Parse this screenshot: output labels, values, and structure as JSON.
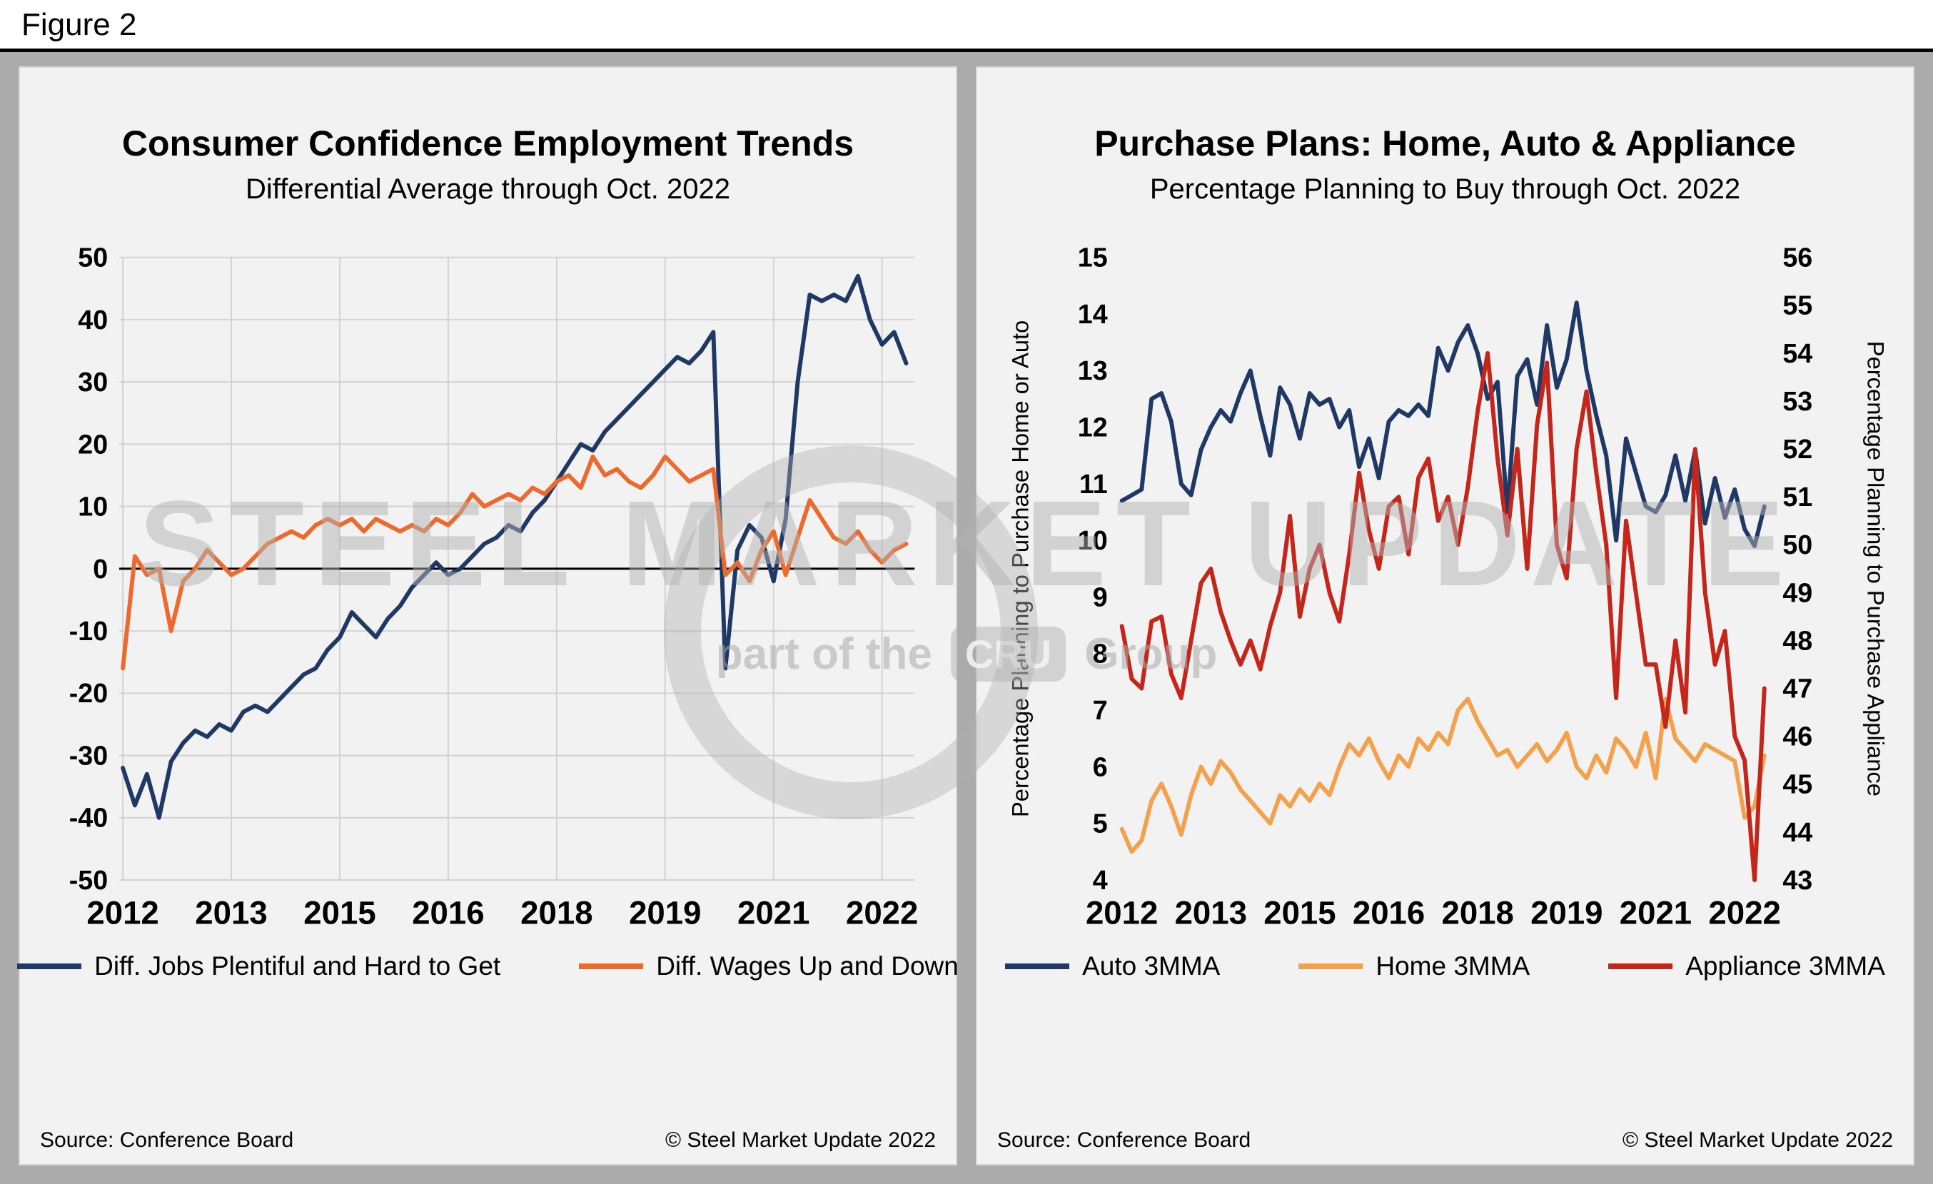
{
  "figure_label": "Figure 2",
  "watermark": {
    "main": "STEEL MARKET UPDATE",
    "sub_left": "part of the",
    "cru": "CRU",
    "sub_right": "Group"
  },
  "chart_data": [
    {
      "type": "line",
      "title": "Consumer Confidence Employment Trends",
      "subtitle": "Differential Average through Oct. 2022",
      "source": "Source: Conference Board",
      "copyright": "© Steel Market Update 2022",
      "legend_position": "bottom",
      "grid": true,
      "zero_line": true,
      "x_min": 2011.95,
      "x_max": 2022.95,
      "x_start": 2012.0,
      "x_step": 0.16667,
      "x_ticks": {
        "positions": [
          2012,
          2013.5,
          2015,
          2016.5,
          2018,
          2019.5,
          2021,
          2022.5
        ],
        "labels": [
          "2012",
          "2013",
          "2015",
          "2016",
          "2018",
          "2019",
          "2021",
          "2022"
        ]
      },
      "y_left": {
        "min": -50,
        "max": 50,
        "step": 10,
        "title": ""
      },
      "series": [
        {
          "name": "Diff. Jobs Plentiful and Hard to Get",
          "color": "#1F3864",
          "axis": "left",
          "values": [
            -32,
            -38,
            -33,
            -40,
            -31,
            -28,
            -26,
            -27,
            -25,
            -26,
            -23,
            -22,
            -23,
            -21,
            -19,
            -17,
            -16,
            -13,
            -11,
            -7,
            -9,
            -11,
            -8,
            -6,
            -3,
            -1,
            1,
            -1,
            0,
            2,
            4,
            5,
            7,
            6,
            9,
            11,
            14,
            17,
            20,
            19,
            22,
            24,
            26,
            28,
            30,
            32,
            34,
            33,
            35,
            38,
            -16,
            3,
            7,
            5,
            -2,
            8,
            30,
            44,
            43,
            44,
            43,
            47,
            40,
            36,
            38,
            33
          ]
        },
        {
          "name": "Diff. Wages Up and Down",
          "color": "#ED6A2E",
          "axis": "left",
          "values": [
            -16,
            2,
            -1,
            0,
            -10,
            -2,
            0,
            3,
            1,
            -1,
            0,
            2,
            4,
            5,
            6,
            5,
            7,
            8,
            7,
            8,
            6,
            8,
            7,
            6,
            7,
            6,
            8,
            7,
            9,
            12,
            10,
            11,
            12,
            11,
            13,
            12,
            14,
            15,
            13,
            18,
            15,
            16,
            14,
            13,
            15,
            18,
            16,
            14,
            15,
            16,
            -1,
            1,
            -2,
            3,
            6,
            -1,
            5,
            11,
            8,
            5,
            4,
            6,
            3,
            1,
            3,
            4
          ]
        }
      ]
    },
    {
      "type": "line",
      "title": "Purchase Plans: Home, Auto & Appliance",
      "subtitle": "Percentage Planning to Buy through Oct. 2022",
      "source": "Source: Conference Board",
      "copyright": "© Steel Market Update 2022",
      "legend_position": "bottom",
      "grid": false,
      "zero_line": false,
      "x_min": 2011.95,
      "x_max": 2022.95,
      "x_start": 2012.0,
      "x_step": 0.16667,
      "x_ticks": {
        "positions": [
          2012,
          2013.5,
          2015,
          2016.5,
          2018,
          2019.5,
          2021,
          2022.5
        ],
        "labels": [
          "2012",
          "2013",
          "2015",
          "2016",
          "2018",
          "2019",
          "2021",
          "2022"
        ]
      },
      "y_left": {
        "min": 4,
        "max": 15,
        "step": 1,
        "title": "Percentage Planning to Purchase Home or Auto"
      },
      "y_right": {
        "min": 43,
        "max": 56,
        "step": 1,
        "title": "Percentage Planning to Purchase Appliance"
      },
      "series": [
        {
          "name": "Auto 3MMA",
          "color": "#1F3864",
          "axis": "left",
          "values": [
            10.7,
            10.8,
            10.9,
            12.5,
            12.6,
            12.1,
            11.0,
            10.8,
            11.6,
            12.0,
            12.3,
            12.1,
            12.6,
            13.0,
            12.2,
            11.5,
            12.7,
            12.4,
            11.8,
            12.6,
            12.4,
            12.5,
            12.0,
            12.3,
            11.3,
            11.8,
            11.1,
            12.1,
            12.3,
            12.2,
            12.4,
            12.2,
            13.4,
            13.0,
            13.5,
            13.8,
            13.3,
            12.5,
            12.8,
            10.5,
            12.9,
            13.2,
            12.4,
            13.8,
            12.7,
            13.2,
            14.2,
            13.0,
            12.2,
            11.5,
            10.0,
            11.8,
            11.2,
            10.6,
            10.5,
            10.8,
            11.5,
            10.7,
            11.6,
            10.3,
            11.1,
            10.4,
            10.9,
            10.2,
            9.9,
            10.6
          ]
        },
        {
          "name": "Home 3MMA",
          "color": "#F2A24E",
          "axis": "left",
          "values": [
            4.9,
            4.5,
            4.7,
            5.4,
            5.7,
            5.3,
            4.8,
            5.5,
            6.0,
            5.7,
            6.1,
            5.9,
            5.6,
            5.4,
            5.2,
            5.0,
            5.5,
            5.3,
            5.6,
            5.4,
            5.7,
            5.5,
            6.0,
            6.4,
            6.2,
            6.5,
            6.1,
            5.8,
            6.2,
            6.0,
            6.5,
            6.3,
            6.6,
            6.4,
            7.0,
            7.2,
            6.8,
            6.5,
            6.2,
            6.3,
            6.0,
            6.2,
            6.4,
            6.1,
            6.3,
            6.6,
            6.0,
            5.8,
            6.2,
            5.9,
            6.5,
            6.3,
            6.0,
            6.6,
            5.8,
            7.2,
            6.5,
            6.3,
            6.1,
            6.4,
            6.3,
            6.2,
            6.1,
            5.1,
            5.3,
            6.2
          ]
        },
        {
          "name": "Appliance 3MMA",
          "color": "#C3271B",
          "axis": "right",
          "values": [
            48.3,
            47.2,
            47.0,
            48.4,
            48.5,
            47.3,
            46.8,
            48.0,
            49.2,
            49.5,
            48.6,
            48.0,
            47.5,
            48.0,
            47.4,
            48.3,
            49.0,
            50.6,
            48.5,
            49.5,
            50.0,
            49.0,
            48.4,
            49.8,
            51.5,
            50.3,
            49.5,
            50.8,
            51.0,
            49.8,
            51.4,
            51.8,
            50.5,
            51.0,
            50.0,
            51.2,
            52.8,
            54.0,
            51.8,
            50.2,
            52.0,
            49.5,
            52.5,
            53.8,
            50.0,
            49.3,
            52.0,
            53.2,
            51.5,
            50.0,
            46.8,
            50.5,
            49.0,
            47.5,
            47.5,
            46.2,
            48.0,
            46.5,
            52.0,
            49.0,
            47.5,
            48.2,
            46.0,
            45.5,
            43.0,
            47.0
          ]
        }
      ]
    }
  ]
}
